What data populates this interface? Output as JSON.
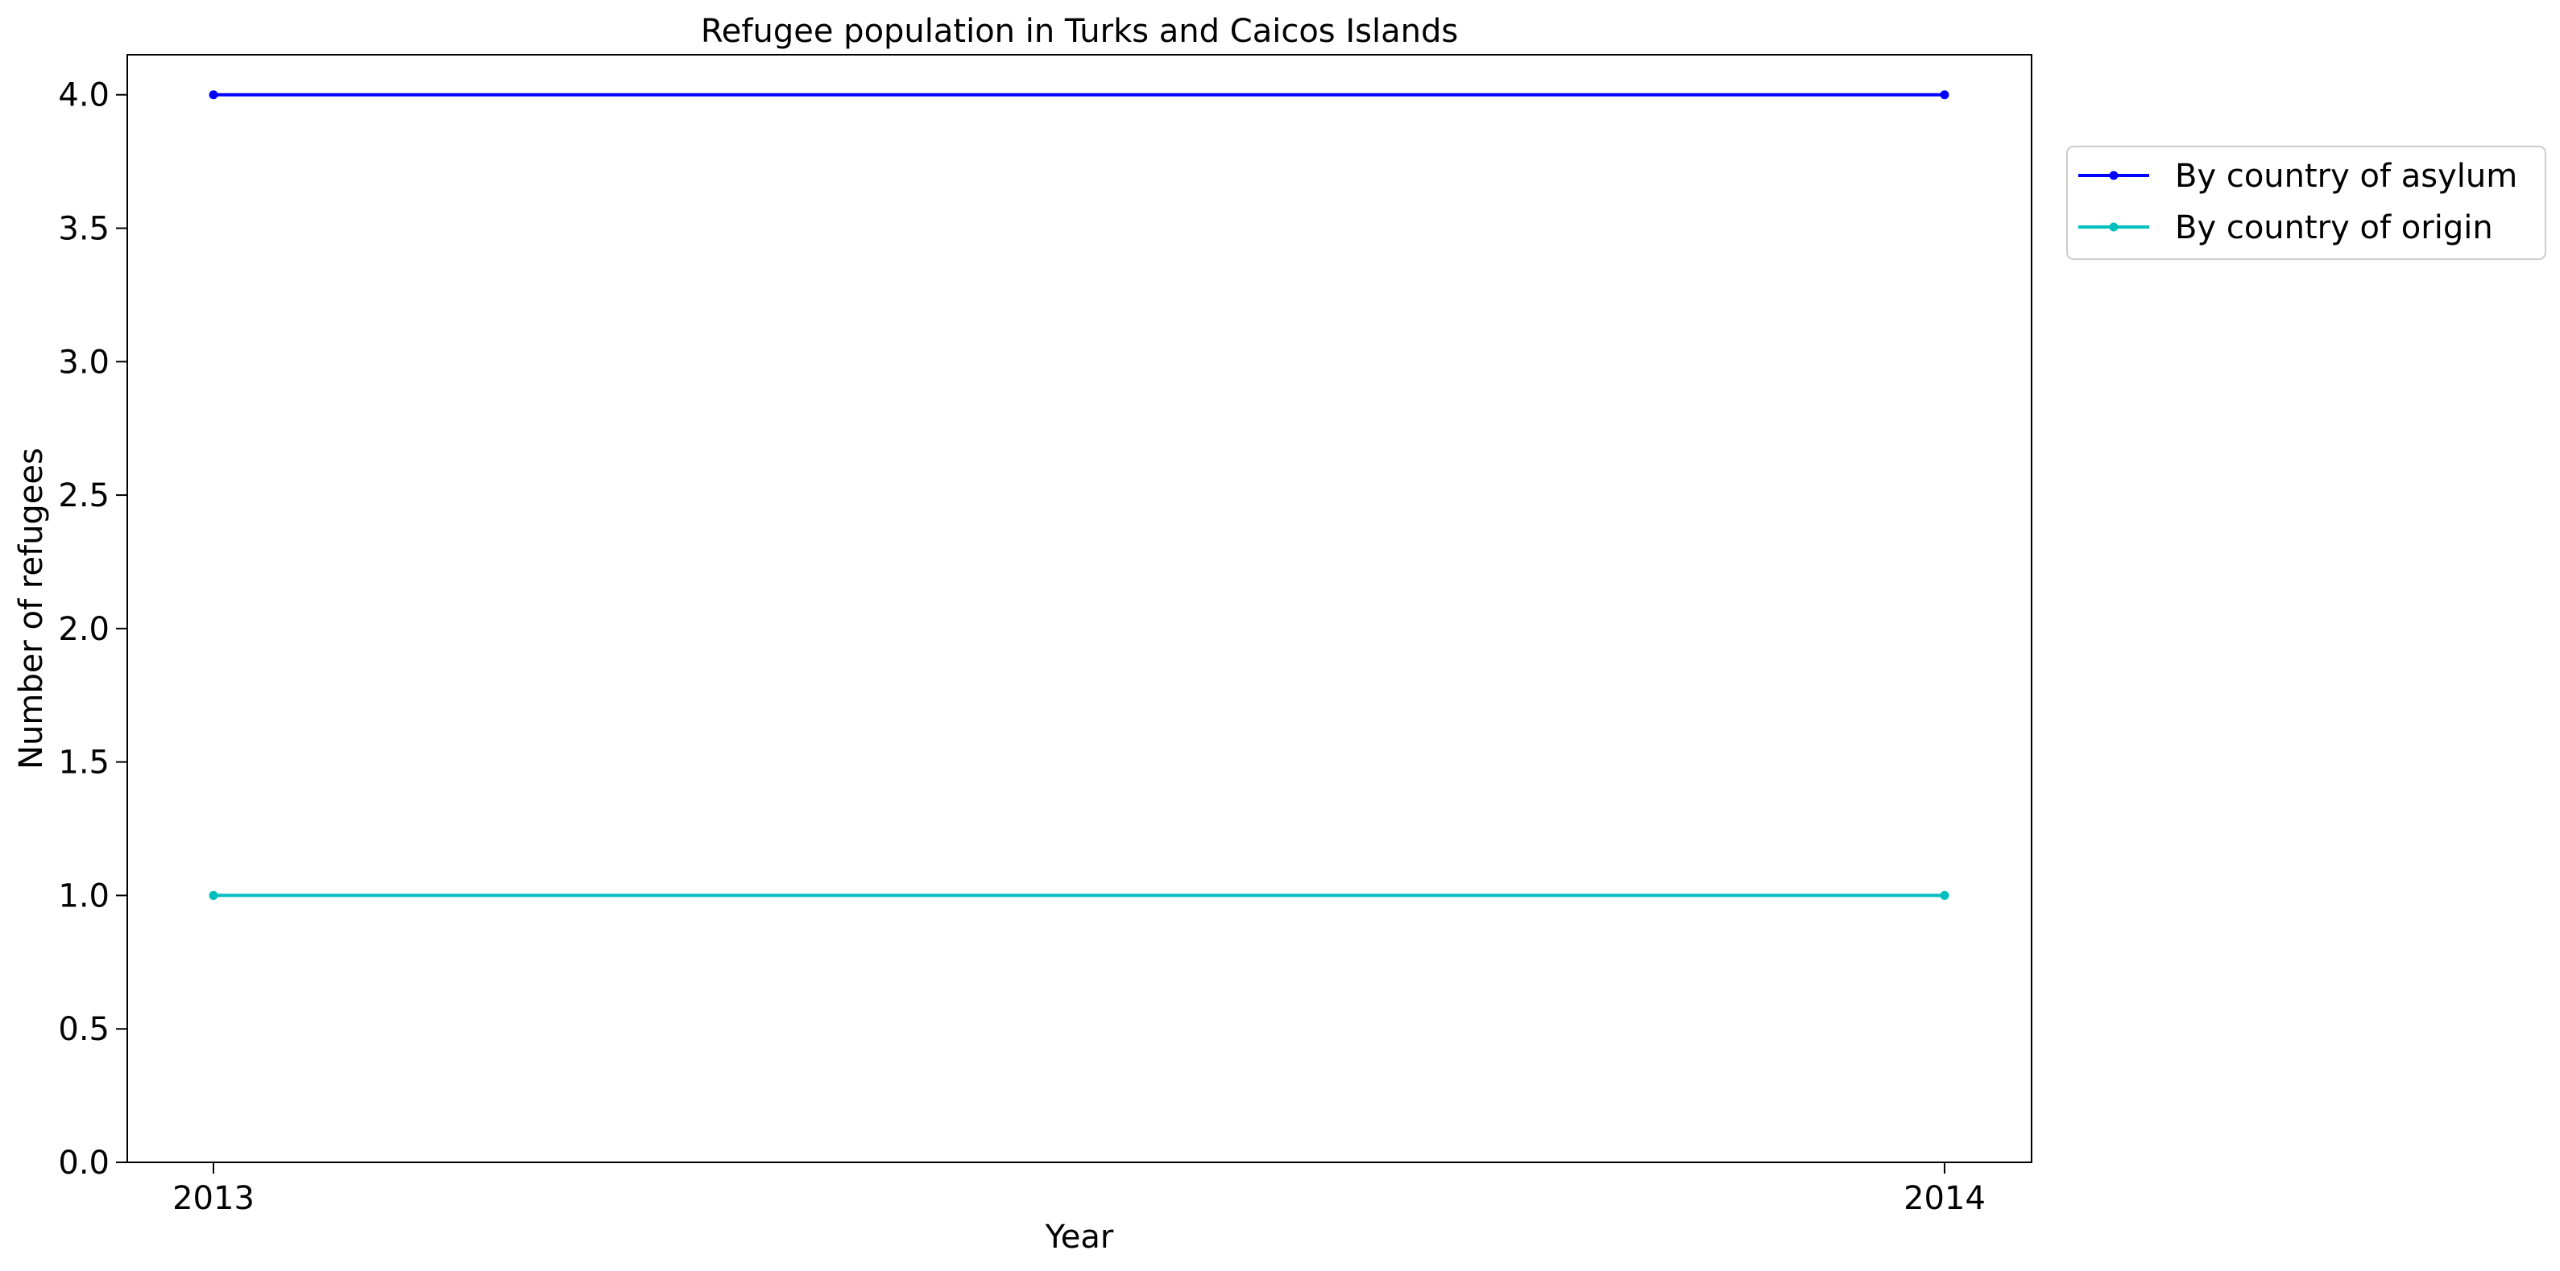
{
  "chart_data": {
    "type": "line",
    "title": "Refugee population in Turks and Caicos Islands",
    "xlabel": "Year",
    "ylabel": "Number of refugees",
    "x": [
      "2013",
      "2014"
    ],
    "ylim": [
      0,
      4.15
    ],
    "yticks": [
      "0.0",
      "0.5",
      "1.0",
      "1.5",
      "2.0",
      "2.5",
      "3.0",
      "3.5",
      "4.0"
    ],
    "grid": false,
    "legend_position": "upper-right-outside",
    "series": [
      {
        "name": "By country of asylum",
        "values": [
          4,
          4
        ],
        "color": "#0000ff"
      },
      {
        "name": "By country of origin",
        "values": [
          1,
          1
        ],
        "color": "#00bfbf"
      }
    ]
  }
}
